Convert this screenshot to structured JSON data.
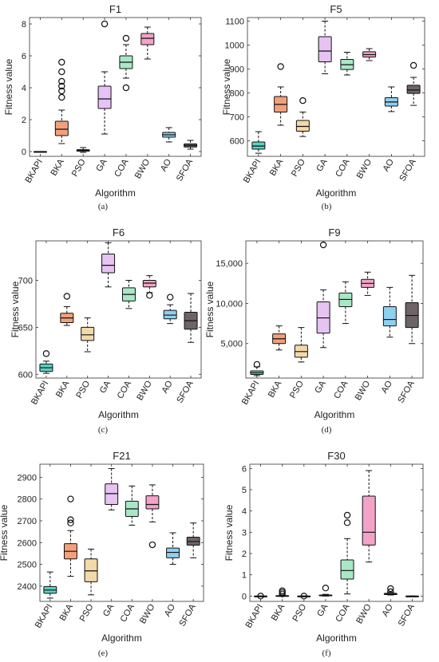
{
  "chart_data": [
    {
      "type": "box",
      "title": "F1",
      "xlabel": "Algorithm",
      "ylabel": "Fitness value",
      "caption": "(a)",
      "categories": [
        "BKAPI",
        "BKA",
        "PSO",
        "GA",
        "COA",
        "BWO",
        "AO",
        "SFOA"
      ],
      "yticks": [
        0,
        2,
        4,
        6,
        8
      ],
      "ytick_labels": [
        "0",
        "2",
        "4",
        "6",
        "8"
      ],
      "ylim": [
        -0.3,
        8.4
      ],
      "boxes": [
        {
          "wlo": 0,
          "q1": 0,
          "med": 0,
          "q3": 0,
          "whi": 0,
          "outliers": []
        },
        {
          "wlo": 0.5,
          "q1": 1.0,
          "med": 1.4,
          "q3": 1.9,
          "whi": 2.6,
          "outliers": [
            3.4,
            3.8,
            4.1,
            4.4,
            5.0,
            5.6
          ]
        },
        {
          "wlo": -0.05,
          "q1": 0.02,
          "med": 0.07,
          "q3": 0.12,
          "whi": 0.25,
          "outliers": []
        },
        {
          "wlo": 1.1,
          "q1": 2.7,
          "med": 3.3,
          "q3": 4.1,
          "whi": 5.0,
          "outliers": [
            8.0
          ]
        },
        {
          "wlo": 4.6,
          "q1": 5.2,
          "med": 5.6,
          "q3": 6.0,
          "whi": 6.7,
          "outliers": [
            4.0,
            7.1
          ]
        },
        {
          "wlo": 5.8,
          "q1": 6.7,
          "med": 7.1,
          "q3": 7.4,
          "whi": 7.8,
          "outliers": []
        },
        {
          "wlo": 0.6,
          "q1": 0.9,
          "med": 1.05,
          "q3": 1.2,
          "whi": 1.5,
          "outliers": []
        },
        {
          "wlo": 0.15,
          "q1": 0.28,
          "med": 0.38,
          "q3": 0.48,
          "whi": 0.7,
          "outliers": []
        }
      ]
    },
    {
      "type": "box",
      "title": "F5",
      "xlabel": "Algorithm",
      "ylabel": "Fitness value",
      "caption": "(b)",
      "categories": [
        "BKAPI",
        "BKA",
        "PSO",
        "GA",
        "COA",
        "BWO",
        "AO",
        "SFOA"
      ],
      "yticks": [
        600,
        700,
        800,
        900,
        1000,
        1100
      ],
      "ytick_labels": [
        "600",
        "700",
        "800",
        "900",
        "1000",
        "1100"
      ],
      "ylim": [
        535,
        1115
      ],
      "boxes": [
        {
          "wlo": 548,
          "q1": 565,
          "med": 578,
          "q3": 595,
          "whi": 638,
          "outliers": []
        },
        {
          "wlo": 665,
          "q1": 720,
          "med": 752,
          "q3": 785,
          "whi": 825,
          "outliers": [
            910
          ]
        },
        {
          "wlo": 618,
          "q1": 640,
          "med": 660,
          "q3": 685,
          "whi": 720,
          "outliers": [
            768
          ]
        },
        {
          "wlo": 880,
          "q1": 930,
          "med": 975,
          "q3": 1035,
          "whi": 1100,
          "outliers": []
        },
        {
          "wlo": 875,
          "q1": 898,
          "med": 918,
          "q3": 940,
          "whi": 970,
          "outliers": []
        },
        {
          "wlo": 935,
          "q1": 950,
          "med": 960,
          "q3": 972,
          "whi": 985,
          "outliers": []
        },
        {
          "wlo": 722,
          "q1": 745,
          "med": 762,
          "q3": 780,
          "whi": 825,
          "outliers": []
        },
        {
          "wlo": 748,
          "q1": 798,
          "med": 812,
          "q3": 832,
          "whi": 865,
          "outliers": [
            915
          ]
        }
      ]
    },
    {
      "type": "box",
      "title": "F6",
      "xlabel": "Algorithm",
      "ylabel": "Fitness value",
      "caption": "(c)",
      "categories": [
        "BKAPI",
        "BKA",
        "PSO",
        "GA",
        "COA",
        "BWO",
        "AO",
        "SFOA"
      ],
      "yticks": [
        600,
        650,
        700
      ],
      "ytick_labels": [
        "600",
        "650",
        "700"
      ],
      "ylim": [
        596,
        742
      ],
      "boxes": [
        {
          "wlo": 601,
          "q1": 603,
          "med": 607,
          "q3": 611,
          "whi": 614,
          "outliers": [
            622
          ]
        },
        {
          "wlo": 652,
          "q1": 655,
          "med": 660,
          "q3": 665,
          "whi": 672,
          "outliers": [
            683
          ]
        },
        {
          "wlo": 624,
          "q1": 636,
          "med": 642,
          "q3": 650,
          "whi": 660,
          "outliers": []
        },
        {
          "wlo": 693,
          "q1": 708,
          "med": 716,
          "q3": 728,
          "whi": 740,
          "outliers": []
        },
        {
          "wlo": 670,
          "q1": 678,
          "med": 685,
          "q3": 692,
          "whi": 700,
          "outliers": []
        },
        {
          "wlo": 687,
          "q1": 693,
          "med": 697,
          "q3": 700,
          "whi": 705,
          "outliers": [
            684
          ]
        },
        {
          "wlo": 654,
          "q1": 659,
          "med": 663,
          "q3": 668,
          "whi": 674,
          "outliers": [
            682
          ]
        },
        {
          "wlo": 634,
          "q1": 648,
          "med": 657,
          "q3": 666,
          "whi": 686,
          "outliers": []
        }
      ]
    },
    {
      "type": "box",
      "title": "F9",
      "xlabel": "Algorithm",
      "ylabel": "Fitness value",
      "caption": "(d)",
      "categories": [
        "BKAPI",
        "BKA",
        "PSO",
        "GA",
        "COA",
        "BWO",
        "AO",
        "SFOA"
      ],
      "yticks": [
        5000,
        10000,
        15000
      ],
      "ytick_labels": [
        "5,000",
        "10,000",
        "15,000"
      ],
      "ylim": [
        700,
        17800
      ],
      "boxes": [
        {
          "wlo": 1000,
          "q1": 1150,
          "med": 1350,
          "q3": 1600,
          "whi": 2100,
          "outliers": [
            2400
          ]
        },
        {
          "wlo": 4200,
          "q1": 5000,
          "med": 5600,
          "q3": 6200,
          "whi": 7200,
          "outliers": []
        },
        {
          "wlo": 2700,
          "q1": 3300,
          "med": 4000,
          "q3": 4800,
          "whi": 7000,
          "outliers": []
        },
        {
          "wlo": 4500,
          "q1": 6300,
          "med": 8200,
          "q3": 10200,
          "whi": 11700,
          "outliers": [
            17300
          ]
        },
        {
          "wlo": 7500,
          "q1": 9600,
          "med": 10500,
          "q3": 11300,
          "whi": 12700,
          "outliers": []
        },
        {
          "wlo": 11000,
          "q1": 12000,
          "med": 12500,
          "q3": 13000,
          "whi": 13900,
          "outliers": []
        },
        {
          "wlo": 5800,
          "q1": 7200,
          "med": 8000,
          "q3": 9600,
          "whi": 12000,
          "outliers": []
        },
        {
          "wlo": 5000,
          "q1": 7000,
          "med": 8500,
          "q3": 10100,
          "whi": 13500,
          "outliers": []
        }
      ]
    },
    {
      "type": "box",
      "title": "F21",
      "xlabel": "Algorithm",
      "ylabel": "Fitness value",
      "caption": "(e)",
      "categories": [
        "BKAPI",
        "BKA",
        "PSO",
        "GA",
        "COA",
        "BWO",
        "AO",
        "SFOA"
      ],
      "yticks": [
        2400,
        2500,
        2600,
        2700,
        2800,
        2900
      ],
      "ytick_labels": [
        "2400",
        "2500",
        "2600",
        "2700",
        "2800",
        "2900"
      ],
      "ylim": [
        2330,
        2960
      ],
      "boxes": [
        {
          "wlo": 2345,
          "q1": 2367,
          "med": 2382,
          "q3": 2398,
          "whi": 2465,
          "outliers": []
        },
        {
          "wlo": 2445,
          "q1": 2525,
          "med": 2560,
          "q3": 2595,
          "whi": 2655,
          "outliers": [
            2690,
            2705,
            2800
          ]
        },
        {
          "wlo": 2360,
          "q1": 2420,
          "med": 2470,
          "q3": 2525,
          "whi": 2570,
          "outliers": []
        },
        {
          "wlo": 2750,
          "q1": 2775,
          "med": 2825,
          "q3": 2870,
          "whi": 2940,
          "outliers": []
        },
        {
          "wlo": 2680,
          "q1": 2720,
          "med": 2755,
          "q3": 2790,
          "whi": 2860,
          "outliers": []
        },
        {
          "wlo": 2695,
          "q1": 2755,
          "med": 2775,
          "q3": 2815,
          "whi": 2865,
          "outliers": [
            2590
          ]
        },
        {
          "wlo": 2500,
          "q1": 2530,
          "med": 2555,
          "q3": 2575,
          "whi": 2645,
          "outliers": []
        },
        {
          "wlo": 2530,
          "q1": 2588,
          "med": 2605,
          "q3": 2625,
          "whi": 2690,
          "outliers": []
        }
      ]
    },
    {
      "type": "box",
      "title": "F30",
      "xlabel": "Algorithm",
      "ylabel": "Fitness value",
      "caption": "(f)",
      "categories": [
        "BKAPI",
        "BKA",
        "PSO",
        "GA",
        "COA",
        "BWO",
        "AO",
        "SFOA"
      ],
      "yticks": [
        0,
        1,
        2,
        3,
        4,
        5,
        6
      ],
      "ytick_labels": [
        "0",
        "1",
        "2",
        "3",
        "4",
        "5",
        "6"
      ],
      "ylim": [
        -0.25,
        6.2
      ],
      "boxes": [
        {
          "wlo": 0,
          "q1": 0,
          "med": 0,
          "q3": 0,
          "whi": 0,
          "outliers": [
            0
          ]
        },
        {
          "wlo": 0,
          "q1": 0,
          "med": 0,
          "q3": 0.02,
          "whi": 0.05,
          "outliers": [
            0.1,
            0.18,
            0.25
          ]
        },
        {
          "wlo": 0,
          "q1": 0,
          "med": 0,
          "q3": 0,
          "whi": 0,
          "outliers": [
            0
          ]
        },
        {
          "wlo": 0,
          "q1": 0.02,
          "med": 0.03,
          "q3": 0.05,
          "whi": 0.08,
          "outliers": [
            0.38
          ]
        },
        {
          "wlo": 0.1,
          "q1": 0.8,
          "med": 1.2,
          "q3": 1.7,
          "whi": 2.7,
          "outliers": [
            3.45,
            3.8
          ]
        },
        {
          "wlo": 1.6,
          "q1": 2.4,
          "med": 3.0,
          "q3": 4.7,
          "whi": 5.9,
          "outliers": []
        },
        {
          "wlo": 0.05,
          "q1": 0.07,
          "med": 0.1,
          "q3": 0.13,
          "whi": 0.18,
          "outliers": [
            0.2,
            0.35
          ]
        },
        {
          "wlo": 0,
          "q1": 0,
          "med": 0,
          "q3": 0,
          "whi": 0,
          "outliers": []
        }
      ]
    }
  ],
  "colors": [
    "#5ad1c2",
    "#f2a07b",
    "#f3d9a9",
    "#e6c3f3",
    "#a9e8c7",
    "#f3a3c8",
    "#8fd0ef",
    "#6e6468"
  ]
}
